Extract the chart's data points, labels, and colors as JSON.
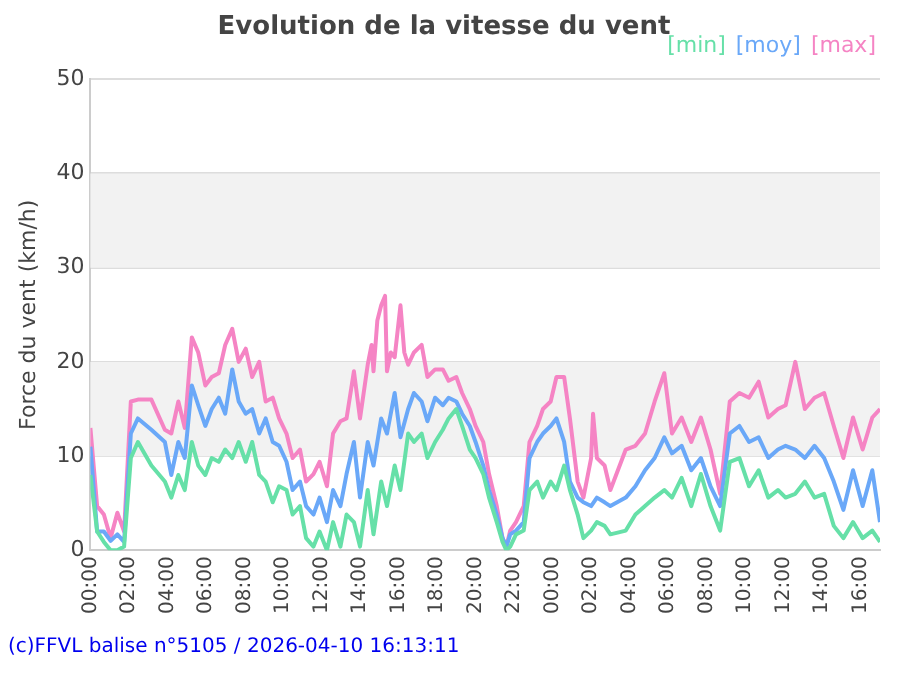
{
  "chart_data": {
    "type": "line",
    "title": "Evolution de la vitesse du vent",
    "ylabel": "Force du vent (km/h)",
    "x": [
      "2026-04-09T00:00",
      "2026-04-09T00:21",
      "2026-04-09T00:42",
      "2026-04-09T01:03",
      "2026-04-09T01:24",
      "2026-04-09T01:45",
      "2026-04-09T02:06",
      "2026-04-09T02:28",
      "2026-04-09T03:10",
      "2026-04-09T03:52",
      "2026-04-09T04:12",
      "2026-04-09T04:34",
      "2026-04-09T04:54",
      "2026-04-09T05:16",
      "2026-04-09T05:36",
      "2026-04-09T05:58",
      "2026-04-09T06:18",
      "2026-04-09T06:40",
      "2026-04-09T07:00",
      "2026-04-09T07:22",
      "2026-04-09T07:42",
      "2026-04-09T08:04",
      "2026-04-09T08:24",
      "2026-04-09T08:46",
      "2026-04-09T09:06",
      "2026-04-09T09:28",
      "2026-04-09T09:48",
      "2026-04-09T10:11",
      "2026-04-09T10:30",
      "2026-04-09T10:53",
      "2026-04-09T11:12",
      "2026-04-09T11:35",
      "2026-04-09T11:54",
      "2026-04-09T12:17",
      "2026-04-09T12:36",
      "2026-04-09T12:59",
      "2026-04-09T13:18",
      "2026-04-09T13:41",
      "2026-04-09T14:00",
      "2026-04-09T14:24",
      "2026-04-09T14:42",
      "2026-04-09T15:06",
      "2026-04-09T15:24",
      "2026-04-09T15:48",
      "2026-04-09T16:06",
      "2026-04-09T16:30",
      "2026-04-09T16:48",
      "2026-04-09T17:12",
      "2026-04-09T17:30",
      "2026-04-09T17:54",
      "2026-04-09T18:18",
      "2026-04-09T18:36",
      "2026-04-09T19:00",
      "2026-04-09T19:18",
      "2026-04-09T19:42",
      "2026-04-09T20:00",
      "2026-04-09T20:24",
      "2026-04-09T20:42",
      "2026-04-09T21:06",
      "2026-04-09T21:24",
      "2026-04-09T21:36",
      "2026-04-09T21:48",
      "2026-04-09T22:06",
      "2026-04-09T22:30",
      "2026-04-09T22:48",
      "2026-04-09T23:12",
      "2026-04-09T23:30",
      "2026-04-09T23:54",
      "2026-04-10T00:12",
      "2026-04-10T00:36",
      "2026-04-10T00:54",
      "2026-04-10T01:18",
      "2026-04-10T01:36",
      "2026-04-10T02:00",
      "2026-04-10T02:18",
      "2026-04-10T02:42",
      "2026-04-10T03:00",
      "2026-04-10T03:48",
      "2026-04-10T04:18",
      "2026-04-10T04:48",
      "2026-04-10T05:18",
      "2026-04-10T05:48",
      "2026-04-10T06:12",
      "2026-04-10T06:42",
      "2026-04-10T07:12",
      "2026-04-10T07:42",
      "2026-04-10T08:12",
      "2026-04-10T08:42",
      "2026-04-10T09:12",
      "2026-04-10T09:42",
      "2026-04-10T10:12",
      "2026-04-10T10:42",
      "2026-04-10T11:12",
      "2026-04-10T11:42",
      "2026-04-10T12:06",
      "2026-04-10T12:36",
      "2026-04-10T13:06",
      "2026-04-10T13:36",
      "2026-04-10T14:06",
      "2026-04-10T14:36",
      "2026-04-10T15:06",
      "2026-04-10T15:36",
      "2026-04-10T16:06",
      "2026-04-10T16:36",
      "2026-04-10T17:00"
    ],
    "series": [
      {
        "name": "[min]",
        "color": "#66e0a8",
        "values": [
          8,
          2,
          0.9,
          0,
          0,
          0.4,
          9.8,
          11.5,
          9,
          7.3,
          5.6,
          8,
          6.4,
          11.5,
          9,
          8,
          9.8,
          9.4,
          10.7,
          9.8,
          11.5,
          9.4,
          11.5,
          8,
          7.3,
          5.1,
          6.8,
          6.4,
          3.8,
          4.7,
          1.3,
          0.4,
          2,
          0,
          3,
          0.4,
          3.8,
          3,
          0.4,
          6.4,
          1.7,
          7.3,
          4.7,
          9,
          6.4,
          12.4,
          11.5,
          12.4,
          9.8,
          11.5,
          12.8,
          14,
          15,
          13.2,
          10.7,
          9.8,
          8.1,
          5.6,
          3,
          0.9,
          0,
          0.4,
          1.7,
          2.1,
          6.4,
          7.3,
          5.6,
          7.3,
          6.4,
          9,
          6.4,
          3.8,
          1.3,
          2.1,
          3,
          2.6,
          1.7,
          2.1,
          3.8,
          4.7,
          5.6,
          6.4,
          5.6,
          7.7,
          4.7,
          8.1,
          4.7,
          2.1,
          9.4,
          9.8,
          6.8,
          8.5,
          5.6,
          6.4,
          5.6,
          6,
          7.3,
          5.6,
          6,
          2.6,
          1.3,
          3,
          1.3,
          2.1,
          0.9
        ]
      },
      {
        "name": "[moy]",
        "color": "#6aa8f8",
        "values": [
          11,
          2,
          2,
          1,
          1.7,
          0.9,
          12.4,
          14,
          12.8,
          11.5,
          8,
          11.5,
          9.8,
          17.5,
          15.4,
          13.2,
          15,
          16.2,
          14.5,
          19.2,
          15.8,
          14.5,
          15,
          12.4,
          14,
          11.5,
          11.1,
          9.4,
          6.4,
          7.3,
          4.7,
          3.8,
          5.6,
          3,
          6.4,
          4.7,
          8.1,
          11.5,
          5.6,
          11.5,
          9,
          14,
          12.4,
          16.7,
          12,
          15,
          16.7,
          15.8,
          13.7,
          16.2,
          15.4,
          16.2,
          15.8,
          14.5,
          13.2,
          11.5,
          9,
          6.4,
          3.8,
          1.3,
          0.4,
          1.7,
          2.1,
          3,
          9.8,
          11.5,
          12.4,
          13.2,
          14,
          11.5,
          7.3,
          5.6,
          5.1,
          4.7,
          5.6,
          5.1,
          4.7,
          5.6,
          6.8,
          8.5,
          9.8,
          12,
          10.3,
          11.1,
          8.5,
          9.8,
          6.8,
          4.7,
          12.4,
          13.2,
          11.5,
          12,
          9.8,
          10.7,
          11.1,
          10.7,
          9.8,
          11.1,
          9.8,
          7.3,
          4.3,
          8.5,
          4.7,
          8.5,
          3
        ]
      },
      {
        "name": "[max]",
        "color": "#f584c4",
        "x": [
          "2026-04-09T00:00",
          "2026-04-09T00:21",
          "2026-04-09T00:42",
          "2026-04-09T01:03",
          "2026-04-09T01:24",
          "2026-04-09T01:45",
          "2026-04-09T02:06",
          "2026-04-09T02:28",
          "2026-04-09T03:10",
          "2026-04-09T03:52",
          "2026-04-09T04:12",
          "2026-04-09T04:34",
          "2026-04-09T04:54",
          "2026-04-09T05:16",
          "2026-04-09T05:36",
          "2026-04-09T05:58",
          "2026-04-09T06:18",
          "2026-04-09T06:40",
          "2026-04-09T07:00",
          "2026-04-09T07:22",
          "2026-04-09T07:42",
          "2026-04-09T08:04",
          "2026-04-09T08:24",
          "2026-04-09T08:46",
          "2026-04-09T09:06",
          "2026-04-09T09:28",
          "2026-04-09T09:48",
          "2026-04-09T10:11",
          "2026-04-09T10:30",
          "2026-04-09T10:53",
          "2026-04-09T11:12",
          "2026-04-09T11:35",
          "2026-04-09T11:54",
          "2026-04-09T12:17",
          "2026-04-09T12:36",
          "2026-04-09T12:59",
          "2026-04-09T13:18",
          "2026-04-09T13:41",
          "2026-04-09T14:00",
          "2026-04-09T14:24",
          "2026-04-09T14:36",
          "2026-04-09T14:42",
          "2026-04-09T14:54",
          "2026-04-09T15:06",
          "2026-04-09T15:18",
          "2026-04-09T15:24",
          "2026-04-09T15:36",
          "2026-04-09T15:48",
          "2026-04-09T16:06",
          "2026-04-09T16:18",
          "2026-04-09T16:30",
          "2026-04-09T16:48",
          "2026-04-09T17:12",
          "2026-04-09T17:30",
          "2026-04-09T17:54",
          "2026-04-09T18:18",
          "2026-04-09T18:36",
          "2026-04-09T19:00",
          "2026-04-09T19:18",
          "2026-04-09T19:42",
          "2026-04-09T20:00",
          "2026-04-09T20:24",
          "2026-04-09T20:42",
          "2026-04-09T21:06",
          "2026-04-09T21:24",
          "2026-04-09T21:36",
          "2026-04-09T21:48",
          "2026-04-09T22:06",
          "2026-04-09T22:30",
          "2026-04-09T22:48",
          "2026-04-09T23:12",
          "2026-04-09T23:30",
          "2026-04-09T23:54",
          "2026-04-10T00:12",
          "2026-04-10T00:36",
          "2026-04-10T00:54",
          "2026-04-10T01:18",
          "2026-04-10T01:36",
          "2026-04-10T02:00",
          "2026-04-10T02:06",
          "2026-04-10T02:18",
          "2026-04-10T02:42",
          "2026-04-10T03:00",
          "2026-04-10T03:48",
          "2026-04-10T04:18",
          "2026-04-10T04:48",
          "2026-04-10T05:18",
          "2026-04-10T05:48",
          "2026-04-10T06:12",
          "2026-04-10T06:42",
          "2026-04-10T07:12",
          "2026-04-10T07:42",
          "2026-04-10T08:12",
          "2026-04-10T08:42",
          "2026-04-10T09:12",
          "2026-04-10T09:42",
          "2026-04-10T10:12",
          "2026-04-10T10:42",
          "2026-04-10T11:12",
          "2026-04-10T11:42",
          "2026-04-10T12:06",
          "2026-04-10T12:36",
          "2026-04-10T13:06",
          "2026-04-10T13:36",
          "2026-04-10T14:06",
          "2026-04-10T14:36",
          "2026-04-10T15:06",
          "2026-04-10T15:36",
          "2026-04-10T16:06",
          "2026-04-10T16:36",
          "2026-04-10T17:00"
        ],
        "values": [
          13,
          4.7,
          3.8,
          1.3,
          4,
          2,
          15.8,
          16,
          16,
          12.8,
          12.4,
          15.8,
          13,
          22.6,
          21,
          17.5,
          18.4,
          18.8,
          21.8,
          23.5,
          20,
          21.4,
          18.4,
          20,
          15.8,
          16.2,
          14,
          12.4,
          9.8,
          10.7,
          7.3,
          8.1,
          9.4,
          6.8,
          12.4,
          13.7,
          14,
          19,
          14,
          19.7,
          21.8,
          19,
          24.4,
          26,
          27,
          19,
          21,
          20.5,
          26,
          21,
          19.7,
          21,
          21.8,
          18.4,
          19.2,
          19.2,
          18,
          18.4,
          16.7,
          15,
          13.2,
          11.5,
          8.1,
          4.7,
          1.3,
          0.4,
          2.1,
          3,
          4.7,
          11.5,
          13.2,
          15,
          15.8,
          18.4,
          18.4,
          14,
          7.3,
          5.6,
          9.8,
          14.5,
          9.8,
          9,
          6.4,
          10.7,
          11.1,
          12.4,
          15.8,
          18.8,
          12.4,
          14.1,
          11.5,
          14.1,
          10.7,
          6,
          15.8,
          16.7,
          16.2,
          17.9,
          14.1,
          15,
          15.4,
          20,
          15,
          16.2,
          16.7,
          13.2,
          9.8,
          14.1,
          10.7,
          14.1,
          15
        ]
      }
    ],
    "xlim": [
      "2026-04-09T00:00",
      "2026-04-10T17:00"
    ],
    "xticks": [
      {
        "value": "2026-04-09T00:00",
        "label": "00:00"
      },
      {
        "value": "2026-04-09T02:00",
        "label": "02:00"
      },
      {
        "value": "2026-04-09T04:00",
        "label": "04:00"
      },
      {
        "value": "2026-04-09T06:00",
        "label": "06:00"
      },
      {
        "value": "2026-04-09T08:00",
        "label": "08:00"
      },
      {
        "value": "2026-04-09T10:00",
        "label": "10:00"
      },
      {
        "value": "2026-04-09T12:00",
        "label": "12:00"
      },
      {
        "value": "2026-04-09T14:00",
        "label": "14:00"
      },
      {
        "value": "2026-04-09T16:00",
        "label": "16:00"
      },
      {
        "value": "2026-04-09T18:00",
        "label": "18:00"
      },
      {
        "value": "2026-04-09T20:00",
        "label": "20:00"
      },
      {
        "value": "2026-04-09T22:00",
        "label": "22:00"
      },
      {
        "value": "2026-04-10T00:00",
        "label": "00:00"
      },
      {
        "value": "2026-04-10T02:00",
        "label": "02:00"
      },
      {
        "value": "2026-04-10T04:00",
        "label": "04:00"
      },
      {
        "value": "2026-04-10T06:00",
        "label": "06:00"
      },
      {
        "value": "2026-04-10T08:00",
        "label": "08:00"
      },
      {
        "value": "2026-04-10T10:00",
        "label": "10:00"
      },
      {
        "value": "2026-04-10T12:00",
        "label": "12:00"
      },
      {
        "value": "2026-04-10T14:00",
        "label": "14:00"
      },
      {
        "value": "2026-04-10T16:00",
        "label": "16:00"
      }
    ],
    "ylim": [
      0,
      50
    ],
    "yticks": [
      0,
      10,
      20,
      30,
      40,
      50
    ],
    "bands": [
      {
        "axis": "y",
        "from": 10,
        "to": 20,
        "color": "#f2f2f2"
      },
      {
        "axis": "y",
        "from": 30,
        "to": 40,
        "color": "#f2f2f2"
      }
    ],
    "grid": "y",
    "legend": "top right",
    "marker": "none",
    "line_style": "solid",
    "annotations": [
      "(c)FFVL balise n°5105 / 2026-04-10 16:13:11"
    ]
  }
}
